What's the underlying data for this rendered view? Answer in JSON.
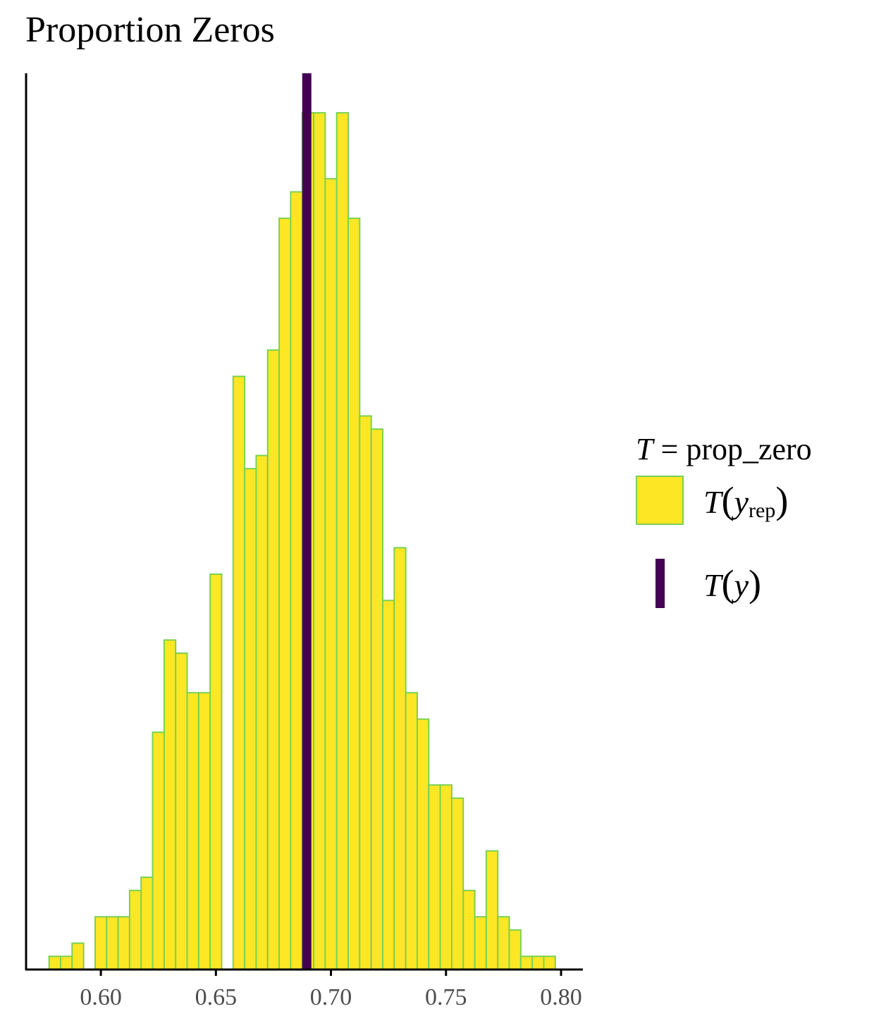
{
  "title": "Proportion Zeros",
  "colors": {
    "bar_fill": "#fde725",
    "bar_outline": "#7ad151",
    "observed_line": "#440154",
    "axis": "#000000",
    "tick_text": "#4d4d4d"
  },
  "legend": {
    "title_T": "T",
    "title_eq": " = ",
    "title_stat": "prop_zero",
    "yrep": {
      "T": "T",
      "y": "y",
      "sub": "rep"
    },
    "y": {
      "T": "T",
      "y": "y"
    }
  },
  "chart_data": {
    "type": "bar",
    "title": "Proportion Zeros",
    "xlabel": "",
    "ylabel": "",
    "xlim": [
      0.5675,
      0.8095
    ],
    "x_ticks": [
      0.6,
      0.65,
      0.7,
      0.75,
      0.8
    ],
    "x_tick_labels": [
      "0.60",
      "0.65",
      "0.70",
      "0.75",
      "0.80"
    ],
    "y_axis_labels_shown": false,
    "ylim": [
      0,
      68
    ],
    "bin_width": 0.005,
    "bin_start": 0.5775,
    "series": [
      {
        "values": [
          1,
          1,
          2,
          0,
          4,
          4,
          4,
          6,
          7,
          18,
          25,
          24,
          21,
          21,
          30,
          0,
          45,
          38,
          39,
          47,
          57,
          59,
          65,
          65,
          60,
          65,
          57,
          42,
          41,
          28,
          32,
          21,
          19,
          14,
          14,
          13,
          6,
          4,
          9,
          4,
          3,
          1,
          1,
          1
        ]
      }
    ],
    "observed_value": 0.6895,
    "observed_label": "T(y)",
    "replicated_label": "T(yrep)",
    "grid": false,
    "legend_position": "right"
  }
}
